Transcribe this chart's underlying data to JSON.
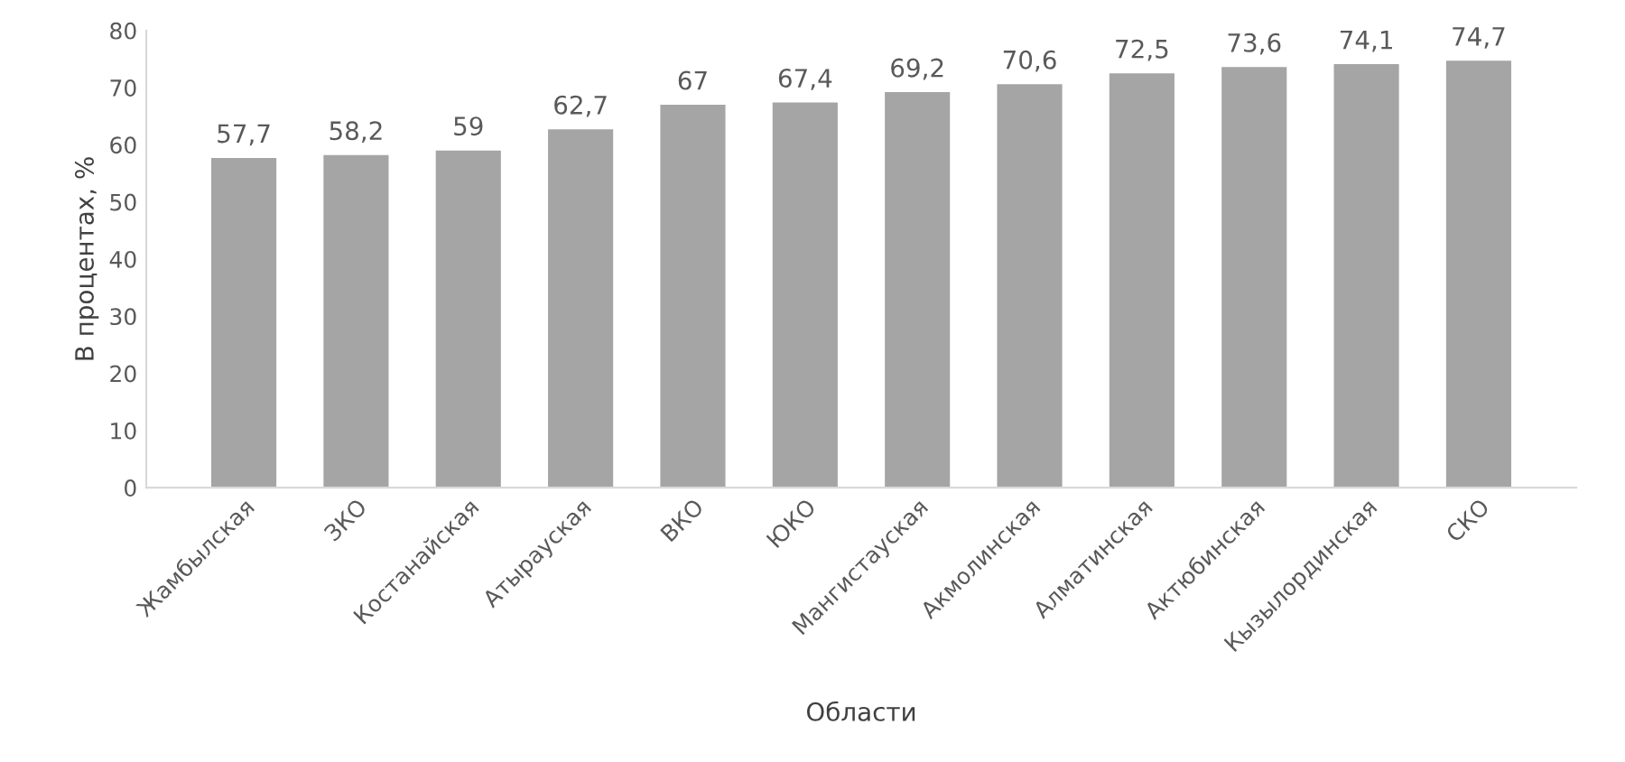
{
  "chart_data": {
    "type": "bar",
    "xlabel": "Области",
    "ylabel": "В процентах, %",
    "categories": [
      "Жамбылская",
      "ЗКО",
      "Костанайская",
      "Атырауская",
      "ВКО",
      "ЮКО",
      "Мангистауская",
      "Акмолинская",
      "Алматинская",
      "Актюбинская",
      "Кызылординская",
      "СКО"
    ],
    "values": [
      57.7,
      58.2,
      59,
      62.7,
      67,
      67.4,
      69.2,
      70.6,
      72.5,
      73.6,
      74.1,
      74.7
    ],
    "value_labels": [
      "57,7",
      "58,2",
      "59",
      "62,7",
      "67",
      "67,4",
      "69,2",
      "70,6",
      "72,5",
      "73,6",
      "74,1",
      "74,7"
    ],
    "color": "#a5a5a5",
    "ylim": [
      0,
      80
    ],
    "yticks": [
      0,
      10,
      20,
      30,
      40,
      50,
      60,
      70,
      80
    ],
    "grid": false
  }
}
